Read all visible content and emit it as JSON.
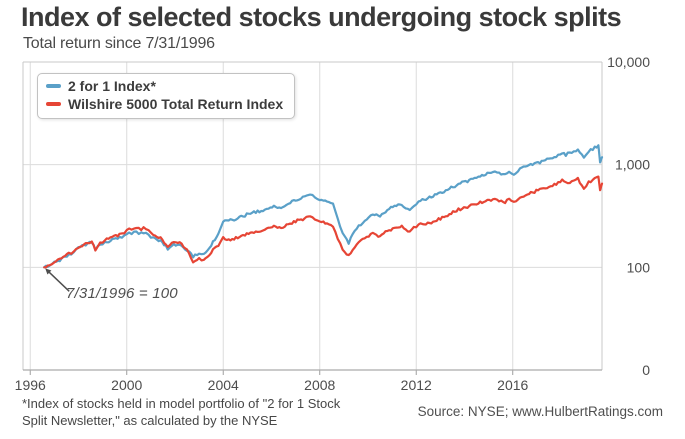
{
  "header": {
    "title": "Index of selected stocks undergoing stock splits",
    "subtitle": "Total return since 7/31/1996"
  },
  "footer": {
    "footnote_line1": "*Index of stocks held in model portfolio of \"2 for 1 Stock",
    "footnote_line2": "Split Newsletter,\" as calculated by the NYSE",
    "source": "Source: NYSE; www.HulbertRatings.com"
  },
  "colors": {
    "blue_series": "#5AA0C8",
    "red_series": "#E64535",
    "gridline": "#dcdcdc",
    "axis": "#ababab",
    "text_dark": "#3a3a3a",
    "text_axis": "#4d4d4d"
  },
  "chart_data": {
    "type": "line",
    "title": "Index of selected stocks undergoing stock splits",
    "subtitle": "Total return since 7/31/1996",
    "xlabel": "",
    "ylabel": "",
    "grid": true,
    "legend_position": "top-left",
    "y_scale": "log",
    "x_range": [
      1995.7,
      2019.7
    ],
    "y_range": [
      10,
      10000
    ],
    "x_ticks": [
      1996,
      2000,
      2004,
      2008,
      2012,
      2016
    ],
    "y_ticks": [
      {
        "value": 10000,
        "label": "10,000"
      },
      {
        "value": 1000,
        "label": "1,000"
      },
      {
        "value": 100,
        "label": "100"
      },
      {
        "value": 10,
        "label": "0"
      }
    ],
    "annotation": {
      "text": "7/31/1996 = 100",
      "points_to": {
        "x": 1996.58,
        "y": 100
      }
    },
    "series": [
      {
        "name": "2 for 1 Index*",
        "color": "#5AA0C8",
        "points": [
          [
            1996.58,
            100
          ],
          [
            1996.8,
            104
          ],
          [
            1997.0,
            113
          ],
          [
            1997.3,
            120
          ],
          [
            1997.6,
            133
          ],
          [
            1997.8,
            140
          ],
          [
            1998.0,
            153
          ],
          [
            1998.3,
            166
          ],
          [
            1998.55,
            175
          ],
          [
            1998.7,
            148
          ],
          [
            1998.9,
            166
          ],
          [
            1999.1,
            176
          ],
          [
            1999.4,
            184
          ],
          [
            1999.7,
            192
          ],
          [
            1999.9,
            200
          ],
          [
            2000.1,
            212
          ],
          [
            2000.3,
            222
          ],
          [
            2000.5,
            215
          ],
          [
            2000.7,
            218
          ],
          [
            2000.9,
            208
          ],
          [
            2001.1,
            192
          ],
          [
            2001.4,
            183
          ],
          [
            2001.7,
            152
          ],
          [
            2001.95,
            168
          ],
          [
            2002.2,
            163
          ],
          [
            2002.5,
            146
          ],
          [
            2002.75,
            127
          ],
          [
            2003.0,
            137
          ],
          [
            2003.2,
            133
          ],
          [
            2003.5,
            165
          ],
          [
            2003.8,
            215
          ],
          [
            2004.0,
            280
          ],
          [
            2004.3,
            288
          ],
          [
            2004.6,
            300
          ],
          [
            2004.9,
            322
          ],
          [
            2005.2,
            340
          ],
          [
            2005.5,
            352
          ],
          [
            2005.8,
            368
          ],
          [
            2006.1,
            388
          ],
          [
            2006.4,
            380
          ],
          [
            2006.7,
            410
          ],
          [
            2007.0,
            455
          ],
          [
            2007.3,
            480
          ],
          [
            2007.6,
            505
          ],
          [
            2007.8,
            495
          ],
          [
            2008.0,
            460
          ],
          [
            2008.3,
            450
          ],
          [
            2008.55,
            415
          ],
          [
            2008.75,
            300
          ],
          [
            2008.95,
            215
          ],
          [
            2009.2,
            172
          ],
          [
            2009.45,
            225
          ],
          [
            2009.7,
            262
          ],
          [
            2009.95,
            290
          ],
          [
            2010.2,
            330
          ],
          [
            2010.5,
            310
          ],
          [
            2010.8,
            360
          ],
          [
            2011.1,
            400
          ],
          [
            2011.4,
            415
          ],
          [
            2011.65,
            360
          ],
          [
            2011.9,
            400
          ],
          [
            2012.1,
            440
          ],
          [
            2012.4,
            465
          ],
          [
            2012.7,
            490
          ],
          [
            2013.0,
            535
          ],
          [
            2013.3,
            570
          ],
          [
            2013.6,
            620
          ],
          [
            2013.9,
            670
          ],
          [
            2014.2,
            705
          ],
          [
            2014.5,
            745
          ],
          [
            2014.8,
            790
          ],
          [
            2015.1,
            830
          ],
          [
            2015.35,
            860
          ],
          [
            2015.6,
            790
          ],
          [
            2015.85,
            850
          ],
          [
            2016.05,
            810
          ],
          [
            2016.3,
            910
          ],
          [
            2016.6,
            975
          ],
          [
            2016.9,
            1020
          ],
          [
            2017.2,
            1070
          ],
          [
            2017.5,
            1130
          ],
          [
            2017.8,
            1200
          ],
          [
            2018.05,
            1300
          ],
          [
            2018.2,
            1245
          ],
          [
            2018.45,
            1330
          ],
          [
            2018.7,
            1420
          ],
          [
            2018.95,
            1165
          ],
          [
            2019.15,
            1340
          ],
          [
            2019.4,
            1470
          ],
          [
            2019.55,
            1555
          ],
          [
            2019.62,
            1075
          ],
          [
            2019.7,
            1215
          ]
        ]
      },
      {
        "name": "Wilshire 5000 Total Return Index",
        "color": "#E64535",
        "points": [
          [
            1996.58,
            100
          ],
          [
            1996.8,
            105
          ],
          [
            1997.0,
            115
          ],
          [
            1997.3,
            122
          ],
          [
            1997.6,
            135
          ],
          [
            1997.8,
            142
          ],
          [
            1998.0,
            155
          ],
          [
            1998.3,
            168
          ],
          [
            1998.55,
            178
          ],
          [
            1998.7,
            150
          ],
          [
            1998.9,
            170
          ],
          [
            1999.1,
            185
          ],
          [
            1999.4,
            198
          ],
          [
            1999.7,
            208
          ],
          [
            1999.9,
            220
          ],
          [
            2000.1,
            235
          ],
          [
            2000.3,
            245
          ],
          [
            2000.5,
            236
          ],
          [
            2000.7,
            240
          ],
          [
            2000.9,
            225
          ],
          [
            2001.1,
            205
          ],
          [
            2001.4,
            195
          ],
          [
            2001.7,
            160
          ],
          [
            2001.95,
            178
          ],
          [
            2002.2,
            172
          ],
          [
            2002.5,
            150
          ],
          [
            2002.75,
            110
          ],
          [
            2003.0,
            120
          ],
          [
            2003.2,
            115
          ],
          [
            2003.5,
            142
          ],
          [
            2003.8,
            165
          ],
          [
            2004.0,
            192
          ],
          [
            2004.3,
            188
          ],
          [
            2004.6,
            196
          ],
          [
            2004.9,
            210
          ],
          [
            2005.2,
            218
          ],
          [
            2005.5,
            225
          ],
          [
            2005.8,
            235
          ],
          [
            2006.1,
            248
          ],
          [
            2006.4,
            245
          ],
          [
            2006.7,
            260
          ],
          [
            2007.0,
            282
          ],
          [
            2007.3,
            295
          ],
          [
            2007.6,
            308
          ],
          [
            2007.8,
            300
          ],
          [
            2008.0,
            278
          ],
          [
            2008.3,
            268
          ],
          [
            2008.55,
            248
          ],
          [
            2008.75,
            185
          ],
          [
            2008.95,
            150
          ],
          [
            2009.2,
            130
          ],
          [
            2009.45,
            158
          ],
          [
            2009.7,
            180
          ],
          [
            2009.95,
            195
          ],
          [
            2010.2,
            212
          ],
          [
            2010.5,
            200
          ],
          [
            2010.8,
            225
          ],
          [
            2011.1,
            245
          ],
          [
            2011.4,
            252
          ],
          [
            2011.65,
            220
          ],
          [
            2011.9,
            240
          ],
          [
            2012.1,
            258
          ],
          [
            2012.4,
            268
          ],
          [
            2012.7,
            278
          ],
          [
            2013.0,
            300
          ],
          [
            2013.3,
            325
          ],
          [
            2013.6,
            350
          ],
          [
            2013.9,
            378
          ],
          [
            2014.2,
            395
          ],
          [
            2014.5,
            415
          ],
          [
            2014.8,
            435
          ],
          [
            2015.1,
            455
          ],
          [
            2015.35,
            465
          ],
          [
            2015.6,
            425
          ],
          [
            2015.85,
            455
          ],
          [
            2016.05,
            440
          ],
          [
            2016.3,
            480
          ],
          [
            2016.6,
            510
          ],
          [
            2016.9,
            545
          ],
          [
            2017.2,
            575
          ],
          [
            2017.5,
            610
          ],
          [
            2017.8,
            650
          ],
          [
            2018.05,
            695
          ],
          [
            2018.2,
            655
          ],
          [
            2018.45,
            695
          ],
          [
            2018.7,
            725
          ],
          [
            2018.95,
            595
          ],
          [
            2019.15,
            670
          ],
          [
            2019.4,
            720
          ],
          [
            2019.55,
            760
          ],
          [
            2019.62,
            570
          ],
          [
            2019.7,
            672
          ]
        ]
      }
    ]
  }
}
